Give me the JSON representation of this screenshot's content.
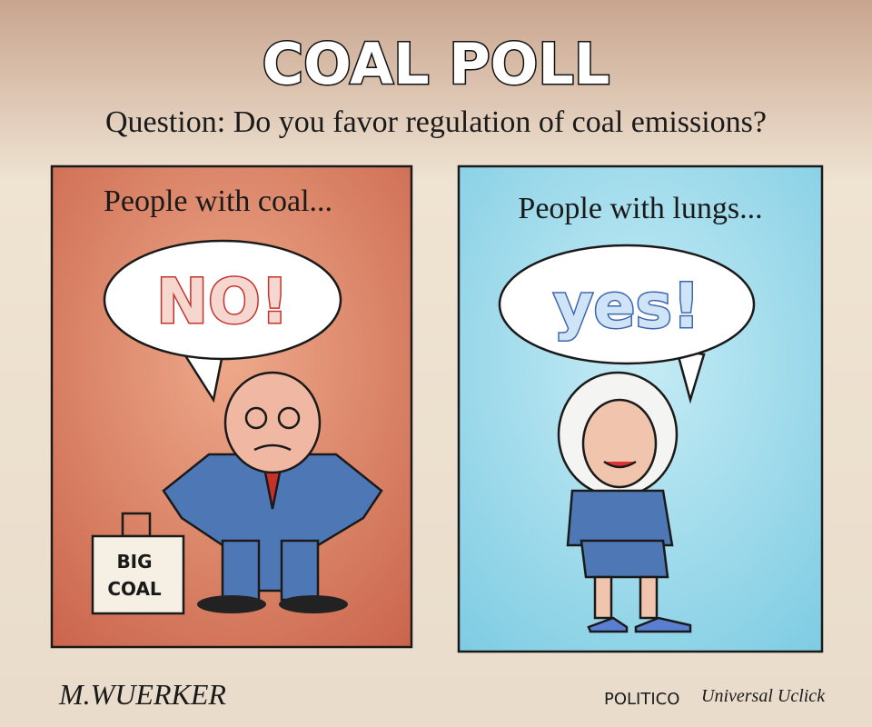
{
  "header": {
    "title": "COAL POLL",
    "question": "Question: Do you favor regulation of coal emissions?"
  },
  "panels": [
    {
      "caption": "People with coal...",
      "speech": "NO!",
      "briefcase": [
        "BIG",
        "COAL"
      ]
    },
    {
      "caption": "People with lungs...",
      "speech": "yes!"
    }
  ],
  "footer": {
    "signature": "M.WUERKER",
    "credit": [
      "POLITICO",
      "Universal Uclick"
    ]
  }
}
